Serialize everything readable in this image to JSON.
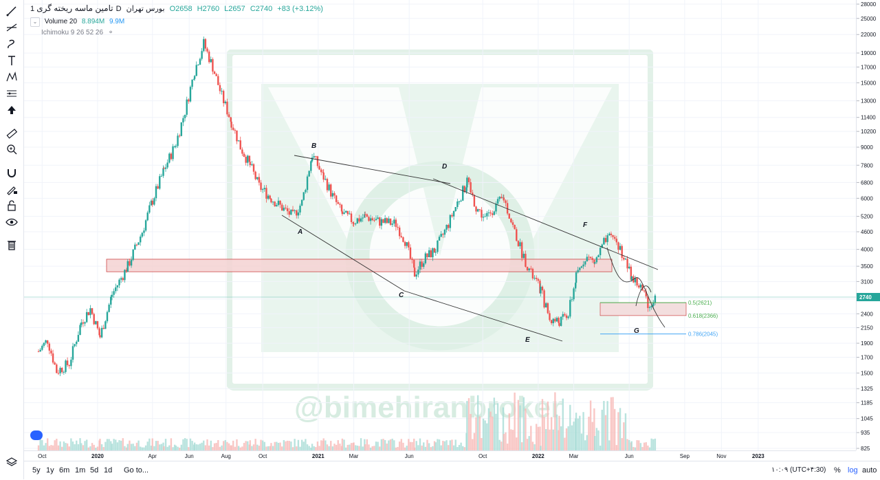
{
  "legend": {
    "title": "تامین ماسه ریخته گری",
    "interval": "1D",
    "exchange": "بورس تهران",
    "open": "O2658",
    "high": "H2760",
    "low": "L2657",
    "close": "C2740",
    "change": "+83 (+3.12%)"
  },
  "indicators": {
    "volume_label": "Volume 20",
    "volume_value": "8.894M",
    "volume_ma": "9.9M",
    "ichimoku": "Ichimoku 9 26 52 26"
  },
  "watermark": "@bimehiranbroker",
  "bottom_bar": {
    "periods": [
      "5y",
      "1y",
      "6m",
      "1m",
      "5d",
      "1d"
    ],
    "goto": "Go to...",
    "time": "۱۰:۰۹ (UTC+۴:30)",
    "percent": "%",
    "log": "log",
    "auto": "auto"
  },
  "chart_data": {
    "type": "candlestick",
    "title": "",
    "y_scale": "log",
    "ylim": [
      825,
      28000
    ],
    "y_ticks": [
      28000,
      25000,
      22000,
      19000,
      17000,
      15000,
      13000,
      11400,
      10200,
      9000,
      7800,
      6800,
      6000,
      5200,
      4600,
      4000,
      3500,
      3100,
      2700,
      2400,
      2150,
      1900,
      1700,
      1500,
      1325,
      1185,
      1045,
      935,
      825
    ],
    "x_ticks": [
      "Oct",
      "2020",
      "Apr",
      "Jun",
      "Aug",
      "Oct",
      "2021",
      "Mar",
      "Jun",
      "Oct",
      "2022",
      "Mar",
      "Jun",
      "Sep",
      "Nov",
      "2023"
    ],
    "last_price": "2740",
    "fib_levels": [
      {
        "label": "0.5(2621)",
        "value": 2621
      },
      {
        "label": "0.618(2366)",
        "value": 2366
      },
      {
        "label": "0.786(2045)",
        "value": 2045
      }
    ],
    "wave_labels": [
      "A",
      "B",
      "C",
      "D",
      "E",
      "F",
      "G"
    ],
    "resistance_zone": [
      3350,
      3700
    ],
    "price_path": [
      [
        "2019-09-25",
        1780
      ],
      [
        "2019-10-10",
        1950
      ],
      [
        "2019-10-25",
        1520
      ],
      [
        "2019-11-15",
        1620
      ],
      [
        "2019-12-05",
        2250
      ],
      [
        "2019-12-20",
        2500
      ],
      [
        "2020-01-05",
        2000
      ],
      [
        "2020-01-25",
        2800
      ],
      [
        "2020-02-20",
        3500
      ],
      [
        "2020-03-15",
        4600
      ],
      [
        "2020-04-01",
        5900
      ],
      [
        "2020-04-20",
        7500
      ],
      [
        "2020-05-10",
        9300
      ],
      [
        "2020-05-25",
        12000
      ],
      [
        "2020-06-10",
        16500
      ],
      [
        "2020-06-25",
        20500
      ],
      [
        "2020-07-10",
        17000
      ],
      [
        "2020-07-25",
        13500
      ],
      [
        "2020-08-10",
        11000
      ],
      [
        "2020-08-25",
        9000
      ],
      [
        "2020-09-10",
        7800
      ],
      [
        "2020-09-25",
        6600
      ],
      [
        "2020-10-15",
        6000
      ],
      [
        "2020-11-05",
        5500
      ],
      [
        "2020-11-20",
        5200
      ],
      [
        "2020-12-05",
        5800
      ],
      [
        "2020-12-22",
        8500
      ],
      [
        "2021-01-10",
        7100
      ],
      [
        "2021-01-25",
        6100
      ],
      [
        "2021-02-10",
        5300
      ],
      [
        "2021-03-01",
        5000
      ],
      [
        "2021-03-20",
        5200
      ],
      [
        "2021-04-10",
        5000
      ],
      [
        "2021-05-10",
        4900
      ],
      [
        "2021-05-25",
        4300
      ],
      [
        "2021-06-10",
        3300
      ],
      [
        "2021-06-25",
        3700
      ],
      [
        "2021-07-15",
        4000
      ],
      [
        "2021-08-05",
        4900
      ],
      [
        "2021-08-20",
        5800
      ],
      [
        "2021-09-05",
        6800
      ],
      [
        "2021-09-20",
        5600
      ],
      [
        "2021-10-05",
        5100
      ],
      [
        "2021-10-20",
        5600
      ],
      [
        "2021-11-05",
        6000
      ],
      [
        "2021-11-20",
        4800
      ],
      [
        "2021-12-05",
        3900
      ],
      [
        "2021-12-20",
        3300
      ],
      [
        "2022-01-05",
        2900
      ],
      [
        "2022-01-20",
        2300
      ],
      [
        "2022-02-05",
        2250
      ],
      [
        "2022-02-20",
        2400
      ],
      [
        "2022-03-05",
        3200
      ],
      [
        "2022-03-20",
        3800
      ],
      [
        "2022-04-05",
        3600
      ],
      [
        "2022-04-20",
        4200
      ],
      [
        "2022-05-05",
        4450
      ],
      [
        "2022-05-20",
        3900
      ],
      [
        "2022-06-05",
        3200
      ],
      [
        "2022-06-20",
        2950
      ],
      [
        "2022-07-05",
        2550
      ],
      [
        "2022-07-15",
        2740
      ]
    ]
  },
  "colors": {
    "up": "#26a69a",
    "down": "#ef5350",
    "trendline": "#333333",
    "zone_fill": "#f5d3d3",
    "zone_border": "#c62828",
    "fib_green": "#4caf50",
    "fib_blue": "#42a5f5",
    "price_tag": "#26a69a",
    "watermark": "#d7ece1"
  }
}
